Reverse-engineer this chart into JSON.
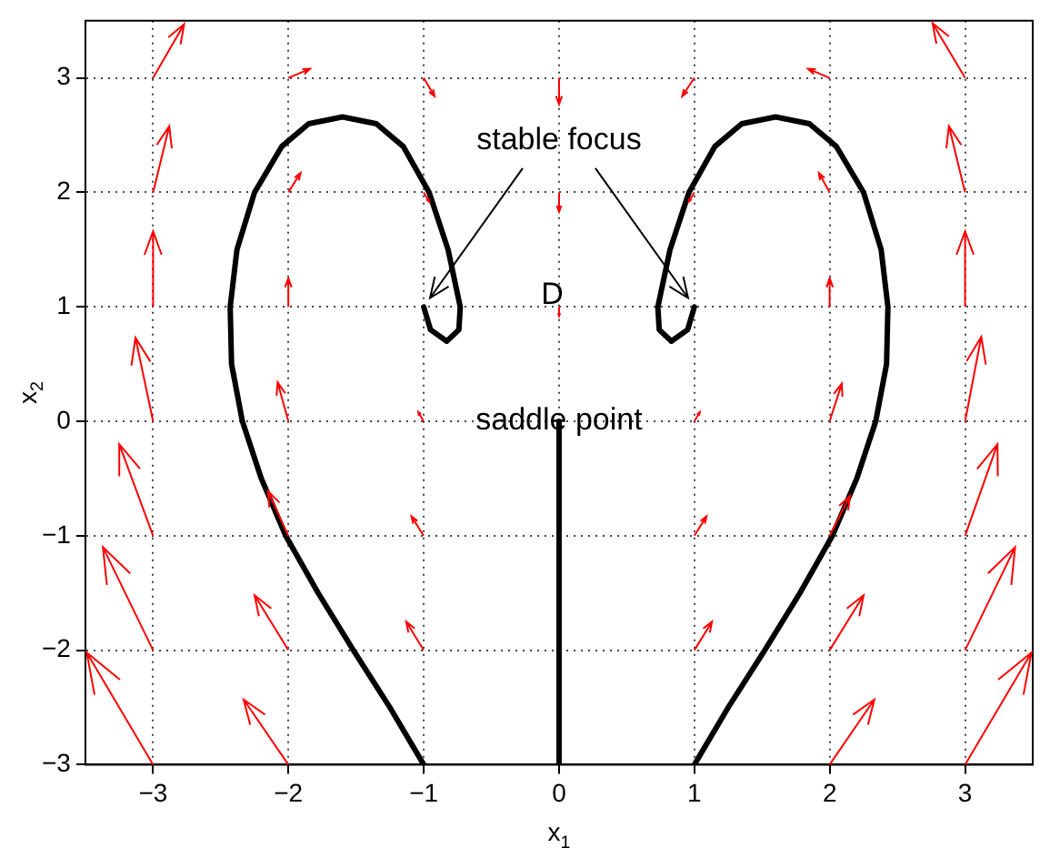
{
  "chart_data": {
    "type": "line",
    "xlabel": "x$_{1}$",
    "ylabel": "x$_{2}$",
    "xlim": [
      -3.5,
      3.5
    ],
    "ylim": [
      -3,
      3.5
    ],
    "xticks": [
      -3,
      -2,
      -1,
      0,
      1,
      2,
      3
    ],
    "yticks": [
      -3,
      -2,
      -1,
      0,
      1,
      2,
      3
    ],
    "grid": true,
    "legend": false,
    "marker": "none",
    "line_style": "solid",
    "annotations": [
      "stable focus",
      "D",
      {
        "text": "saddle point",
        "x": 0,
        "y": 0
      }
    ],
    "series": [
      {
        "color": "#000000",
        "x": [
          -1,
          -1.25,
          -1.52,
          -1.78,
          -2.02,
          -2.2,
          -2.34,
          -2.42,
          -2.43,
          -2.38,
          -2.25,
          -2.05,
          -1.85,
          -1.6,
          -1.35,
          -1.15,
          -0.96,
          -0.82,
          -0.73,
          -0.74,
          -0.83,
          -0.95,
          -1
        ],
        "values": [
          -3,
          -2.5,
          -2,
          -1.5,
          -1,
          -0.5,
          0,
          0.5,
          1,
          1.5,
          2,
          2.4,
          2.6,
          2.66,
          2.6,
          2.4,
          2,
          1.5,
          1,
          0.8,
          0.7,
          0.8,
          1
        ]
      },
      {
        "color": "#000000",
        "x": [
          0,
          0
        ],
        "values": [
          -3,
          0
        ]
      },
      {
        "color": "#000000",
        "x": [
          1,
          1.25,
          1.52,
          1.78,
          2.02,
          2.2,
          2.34,
          2.42,
          2.43,
          2.38,
          2.25,
          2.05,
          1.85,
          1.6,
          1.35,
          1.15,
          0.96,
          0.82,
          0.73,
          0.74,
          0.83,
          0.95,
          1
        ],
        "values": [
          -3,
          -2.5,
          -2,
          -1.5,
          -1,
          -0.5,
          0,
          0.5,
          1,
          1.5,
          2,
          2.4,
          2.6,
          2.66,
          2.6,
          2.4,
          2,
          1.5,
          1,
          0.8,
          0.7,
          0.8,
          1
        ]
      }
    ]
  }
}
